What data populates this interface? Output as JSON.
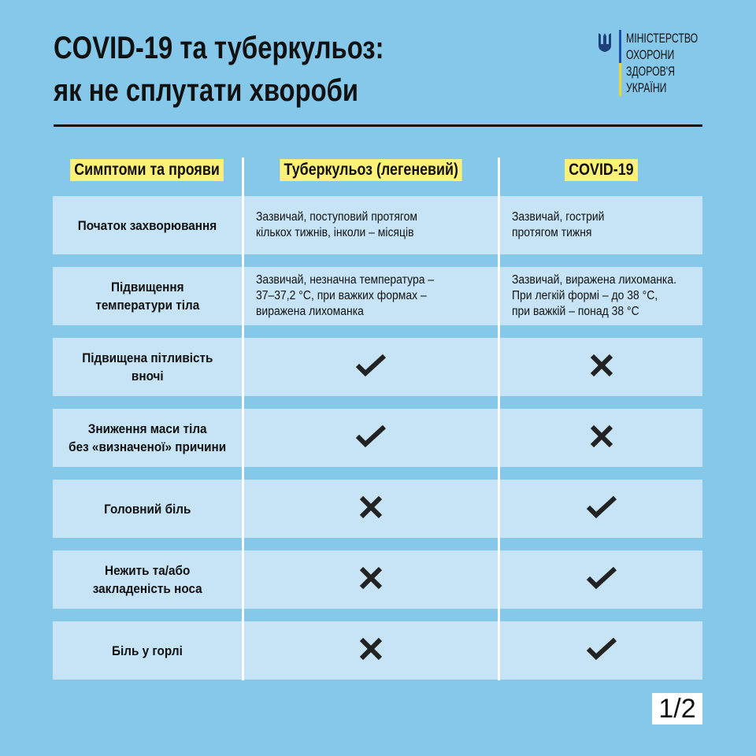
{
  "title_line1": "COVID-19 та туберкульоз:",
  "title_line2": "як не сплутати хвороби",
  "logo": {
    "lines": [
      "МІНІСТЕРСТВО",
      "ОХОРОНИ",
      "ЗДОРОВ'Я",
      "УКРАЇНИ"
    ],
    "icon": "trident-icon"
  },
  "headers": [
    "Симптоми та прояви",
    "Туберкульоз (легеневий)",
    "COVID-19"
  ],
  "rows": [
    {
      "symptom": "Початок захворювання",
      "tb": "Зазвичай, поступовий протягом\nкількох тижнів, інколи – місяців",
      "covid": "Зазвичай, гострий\nпротягом тижня"
    },
    {
      "symptom": "Підвищення\nтемператури тіла",
      "tb": "Зазвичай, незначна температура –\n37–37,2 °C, при важких формах –\nвиражена лихоманка",
      "covid": "Зазвичай, виражена лихоманка.\nПри легкій формі – до 38 °C,\nпри важкій – понад 38 °C"
    },
    {
      "symptom": "Підвищена пітливість\nвночі",
      "tb": "check",
      "covid": "cross"
    },
    {
      "symptom": "Зниження маси тіла\nбез «визначеної» причини",
      "tb": "check",
      "covid": "cross"
    },
    {
      "symptom": "Головний біль",
      "tb": "cross",
      "covid": "check"
    },
    {
      "symptom": "Нежить та/або\nзакладеність носа",
      "tb": "cross",
      "covid": "check"
    },
    {
      "symptom": "Біль у горлі",
      "tb": "cross",
      "covid": "check"
    }
  ],
  "page": "1/2",
  "colors": {
    "background": "#86c8ea",
    "row": "#c6e4f5",
    "highlight": "#fdf178",
    "text": "#111111"
  }
}
